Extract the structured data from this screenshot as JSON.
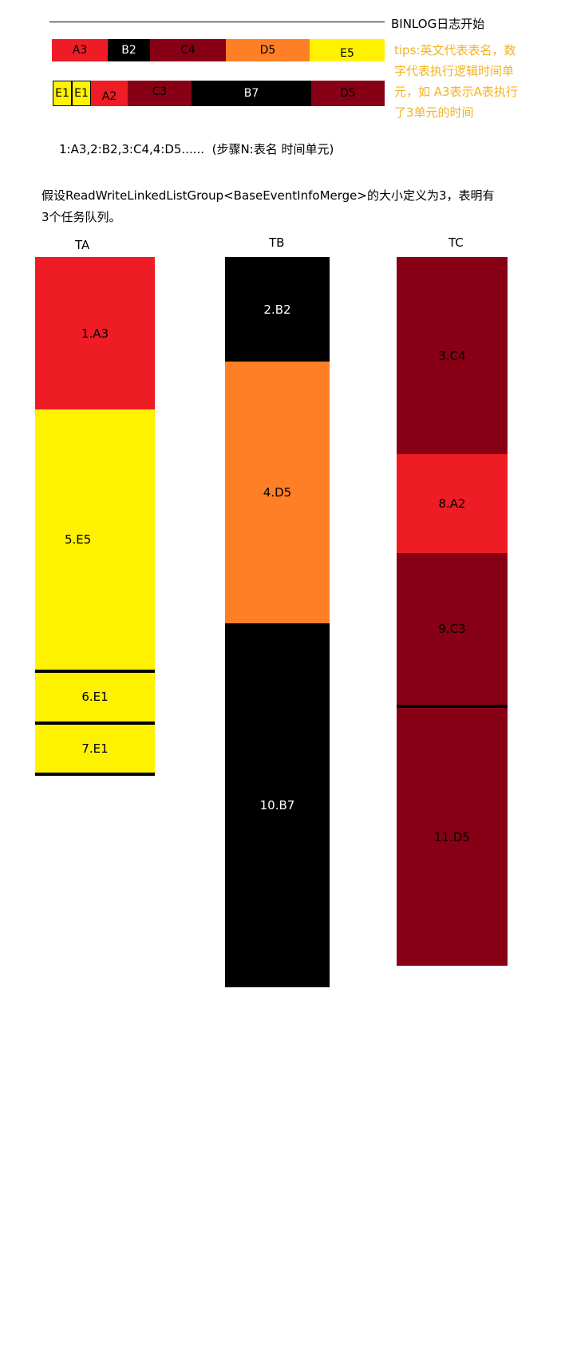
{
  "title": "BINLOG日志开始",
  "bar1": [
    {
      "label": "A3",
      "color": "#ee1c25",
      "text_color": "#000000"
    },
    {
      "label": "B2",
      "color": "#000000",
      "text_color": "#ffffff"
    },
    {
      "label": "C4",
      "color": "#880015",
      "text_color": "#000000"
    },
    {
      "label": "D5",
      "color": "#ff7f27",
      "text_color": "#000000"
    },
    {
      "label": "E5",
      "color": "#fff200",
      "text_color": "#000000"
    }
  ],
  "bar2": [
    {
      "label": "E1",
      "color": "#fff200",
      "text_color": "#000000"
    },
    {
      "label": "E1",
      "color": "#fff200",
      "text_color": "#000000"
    },
    {
      "label": "A2",
      "color": "#ee1c25",
      "text_color": "#000000"
    },
    {
      "label": "C3",
      "color": "#880015",
      "text_color": "#000000"
    },
    {
      "label": "B7",
      "color": "#000000",
      "text_color": "#ffffff"
    },
    {
      "label": "D5",
      "color": "#880015",
      "text_color": "#000000"
    }
  ],
  "tips": [
    "tips:英文代表表名，数",
    "字代表执行逻辑时间单",
    "元，如 A3表示A表执行",
    "了3单元的时间"
  ],
  "sequence_note": "1:A3,2:B2,3:C4,4:D5......  (步骤N:表名 时间单元)",
  "description": [
    "假设ReadWriteLinkedListGroup<BaseEventInfoMerge>的大小定义为3，表明有",
    "3个任务队列。"
  ],
  "queues": [
    {
      "name": "TA",
      "blocks": [
        {
          "label": "1.A3",
          "color": "#ee1c25",
          "text_color": "#000000"
        },
        {
          "label": "5.E5",
          "color": "#fff200",
          "text_color": "#000000"
        },
        {
          "label": "6.E1",
          "color": "#fff200",
          "text_color": "#000000"
        },
        {
          "label": "7.E1",
          "color": "#fff200",
          "text_color": "#000000"
        }
      ]
    },
    {
      "name": "TB",
      "blocks": [
        {
          "label": "2.B2",
          "color": "#000000",
          "text_color": "#ffffff"
        },
        {
          "label": "4.D5",
          "color": "#ff7f27",
          "text_color": "#000000"
        },
        {
          "label": "10.B7",
          "color": "#000000",
          "text_color": "#ffffff"
        }
      ]
    },
    {
      "name": "TC",
      "blocks": [
        {
          "label": "3.C4",
          "color": "#880015",
          "text_color": "#000000"
        },
        {
          "label": "8.A2",
          "color": "#ee1c25",
          "text_color": "#000000"
        },
        {
          "label": "9.C3",
          "color": "#880015",
          "text_color": "#000000"
        },
        {
          "label": "11.D5",
          "color": "#880015",
          "text_color": "#000000"
        }
      ]
    }
  ]
}
